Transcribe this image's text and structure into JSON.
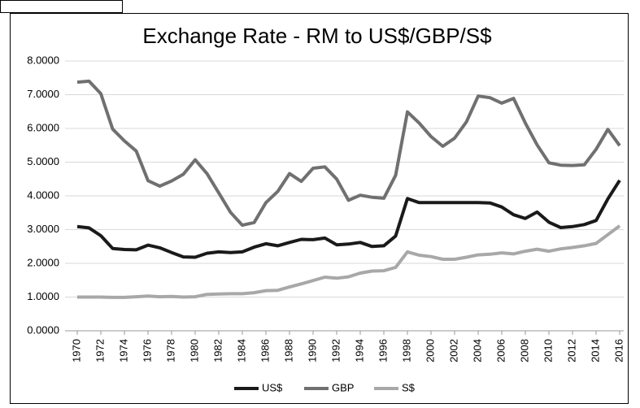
{
  "chart_data": {
    "type": "line",
    "title": "Exchange Rate - RM to US$/GBP/S$",
    "x": [
      1970,
      1971,
      1972,
      1973,
      1974,
      1975,
      1976,
      1977,
      1978,
      1979,
      1980,
      1981,
      1982,
      1983,
      1984,
      1985,
      1986,
      1987,
      1988,
      1989,
      1990,
      1991,
      1992,
      1993,
      1994,
      1995,
      1996,
      1997,
      1998,
      1999,
      2000,
      2001,
      2002,
      2003,
      2004,
      2005,
      2006,
      2007,
      2008,
      2009,
      2010,
      2011,
      2012,
      2013,
      2014,
      2015,
      2016
    ],
    "xlim": [
      1970,
      2016
    ],
    "xticks": [
      1970,
      1972,
      1974,
      1976,
      1978,
      1980,
      1982,
      1984,
      1986,
      1988,
      1990,
      1992,
      1994,
      1996,
      1998,
      2000,
      2002,
      2004,
      2006,
      2008,
      2010,
      2012,
      2014,
      2016
    ],
    "ylim": [
      0,
      8
    ],
    "yticks": [
      {
        "value": 0,
        "label": "0.0000"
      },
      {
        "value": 1,
        "label": "1.0000"
      },
      {
        "value": 2,
        "label": "2.0000"
      },
      {
        "value": 3,
        "label": "3.0000"
      },
      {
        "value": 4,
        "label": "4.0000"
      },
      {
        "value": 5,
        "label": "5.0000"
      },
      {
        "value": 6,
        "label": "6.0000"
      },
      {
        "value": 7,
        "label": "7.0000"
      },
      {
        "value": 8,
        "label": "8.0000"
      }
    ],
    "grid": true,
    "legend": "bottom",
    "series": [
      {
        "name": "US$",
        "color": "#1a1a1a",
        "values": [
          3.09,
          3.05,
          2.82,
          2.44,
          2.41,
          2.4,
          2.54,
          2.46,
          2.32,
          2.19,
          2.18,
          2.3,
          2.34,
          2.32,
          2.34,
          2.48,
          2.58,
          2.52,
          2.62,
          2.71,
          2.7,
          2.75,
          2.55,
          2.57,
          2.62,
          2.5,
          2.52,
          2.81,
          3.92,
          3.8,
          3.8,
          3.8,
          3.8,
          3.8,
          3.8,
          3.79,
          3.67,
          3.44,
          3.33,
          3.52,
          3.22,
          3.06,
          3.09,
          3.15,
          3.27,
          3.91,
          4.46
        ]
      },
      {
        "name": "GBP",
        "color": "#707070",
        "values": [
          7.37,
          7.4,
          7.03,
          5.98,
          5.63,
          5.33,
          4.45,
          4.29,
          4.44,
          4.64,
          5.07,
          4.66,
          4.09,
          3.51,
          3.13,
          3.21,
          3.8,
          4.13,
          4.66,
          4.43,
          4.82,
          4.86,
          4.5,
          3.87,
          4.02,
          3.96,
          3.93,
          4.61,
          6.49,
          6.16,
          5.76,
          5.47,
          5.71,
          6.19,
          6.96,
          6.91,
          6.75,
          6.89,
          6.16,
          5.51,
          4.98,
          4.91,
          4.9,
          4.92,
          5.38,
          5.97,
          5.49
        ]
      },
      {
        "name": "S$",
        "color": "#a8a8a8",
        "values": [
          1.0,
          1.0,
          1.0,
          0.99,
          0.99,
          1.01,
          1.03,
          1.01,
          1.02,
          1.0,
          1.01,
          1.08,
          1.09,
          1.1,
          1.1,
          1.13,
          1.19,
          1.2,
          1.3,
          1.39,
          1.49,
          1.59,
          1.56,
          1.6,
          1.71,
          1.77,
          1.78,
          1.88,
          2.34,
          2.24,
          2.2,
          2.12,
          2.12,
          2.18,
          2.25,
          2.27,
          2.31,
          2.28,
          2.36,
          2.42,
          2.36,
          2.43,
          2.47,
          2.52,
          2.59,
          2.85,
          3.11
        ]
      }
    ]
  }
}
